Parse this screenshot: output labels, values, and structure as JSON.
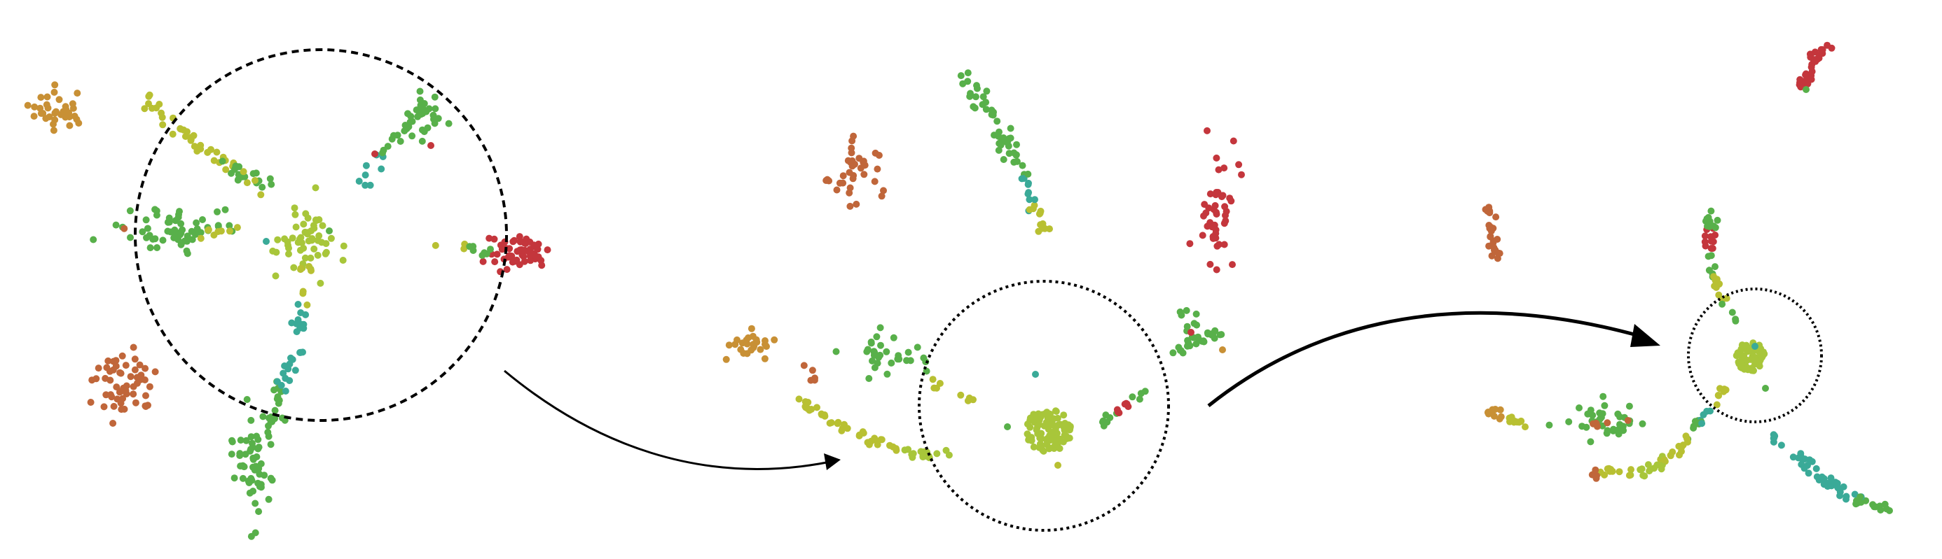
{
  "figure": {
    "panel_count": 3,
    "colors": {
      "gold": "#c89035",
      "rust": "#c0663a",
      "red": "#c4363c",
      "olive": "#b8c032",
      "yellowgreen": "#a8c63a",
      "green": "#58b04a",
      "teal": "#3aaa98",
      "outline": "#000000"
    },
    "circle_styles": [
      "dashed",
      "dotted",
      "dotted"
    ],
    "arrow_styles": [
      "thin",
      "bold"
    ]
  }
}
